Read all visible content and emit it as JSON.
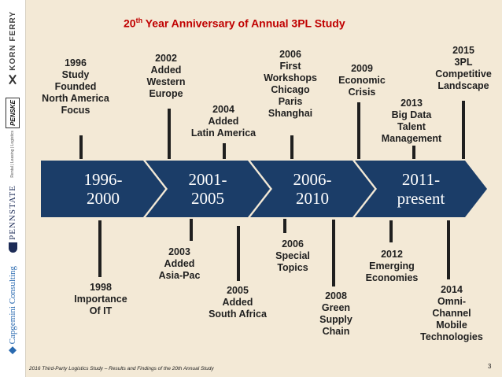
{
  "sidebar": {
    "logo_kornferry": "KORN FERRY",
    "logo_penske": "PENSKE",
    "logo_penske_sub": "Rental | Leasing | Logistics",
    "logo_pennstate": "PENNSTATE",
    "logo_capgemini": "Capgemini Consulting"
  },
  "slide": {
    "title_prefix": "20",
    "title_sup": "th",
    "title_suffix": " Year Anniversary of Annual 3PL Study",
    "footer": "2016 Third-Party Logistics Study – Results and Findings of the 20th Annual Study",
    "page_number": "3"
  },
  "colors": {
    "chevron": "#1b3d68",
    "title": "#c00000",
    "background": "#f3e9d6"
  },
  "periods": [
    {
      "label": "1996-\n2000"
    },
    {
      "label": "2001-\n2005"
    },
    {
      "label": "2006-\n2010"
    },
    {
      "label": "2011-\npresent"
    }
  ],
  "milestones_above": [
    {
      "text": "1996\nStudy\nFounded\nNorth America\nFocus"
    },
    {
      "text": "2002\nAdded\nWestern\nEurope"
    },
    {
      "text": "2004\nAdded\nLatin America"
    },
    {
      "text": "2006\nFirst\nWorkshops\nChicago\nParis\nShanghai"
    },
    {
      "text": "2009\nEconomic\nCrisis"
    },
    {
      "text": "2013\nBig Data\nTalent\nManagement"
    },
    {
      "text": "2015\n3PL\nCompetitive\nLandscape"
    }
  ],
  "milestones_below": [
    {
      "text": "1998\nImportance\nOf IT"
    },
    {
      "text": "2003\nAdded\nAsia-Pac"
    },
    {
      "text": "2005\nAdded\nSouth Africa"
    },
    {
      "text": "2006\nSpecial\nTopics"
    },
    {
      "text": "2008\nGreen\nSupply\nChain"
    },
    {
      "text": "2012\nEmerging\nEconomies"
    },
    {
      "text": "2014\nOmni-\nChannel\nMobile\nTechnologies"
    }
  ]
}
